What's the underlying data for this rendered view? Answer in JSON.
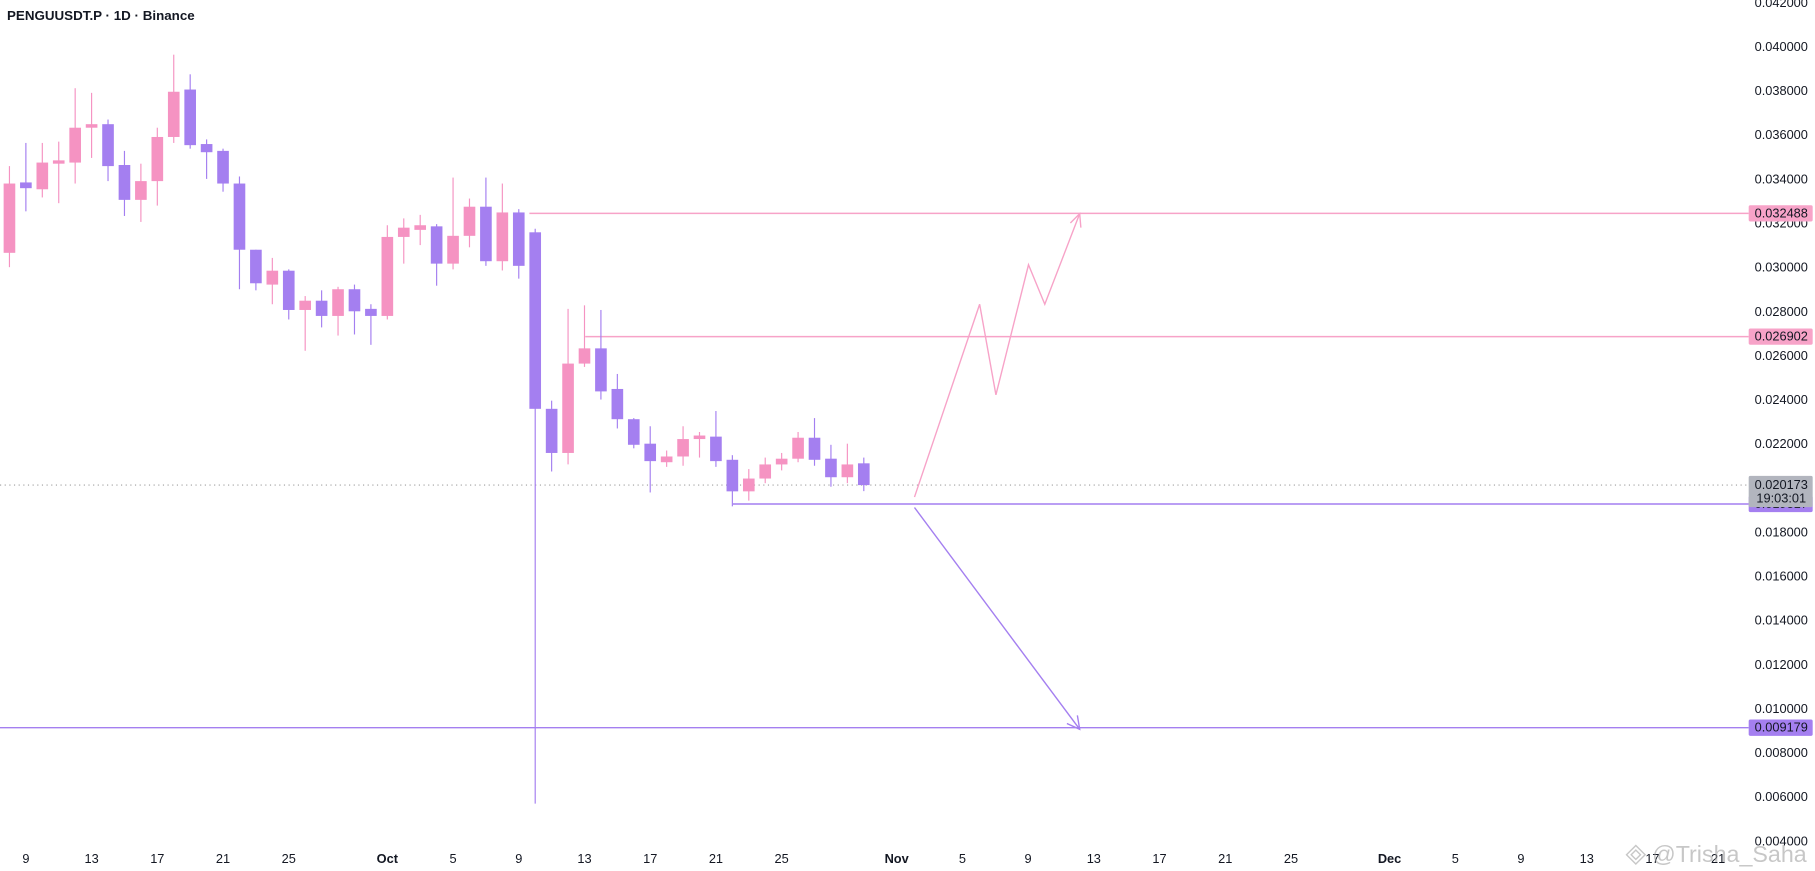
{
  "chart_data": {
    "type": "candlestick",
    "title": "PENGUUSDT.P · 1D · Binance",
    "x": [
      "09-08",
      "09-09",
      "09-10",
      "09-11",
      "09-12",
      "09-13",
      "09-14",
      "09-15",
      "09-16",
      "09-17",
      "09-18",
      "09-19",
      "09-20",
      "09-21",
      "09-22",
      "09-23",
      "09-24",
      "09-25",
      "09-26",
      "09-27",
      "09-28",
      "09-29",
      "09-30",
      "10-01",
      "10-02",
      "10-03",
      "10-04",
      "10-05",
      "10-06",
      "10-07",
      "10-08",
      "10-09",
      "10-10",
      "10-11",
      "10-12",
      "10-13",
      "10-14",
      "10-15",
      "10-16",
      "10-17",
      "10-18",
      "10-19",
      "10-20",
      "10-21",
      "10-22",
      "10-23",
      "10-24",
      "10-25",
      "10-26",
      "10-27",
      "10-28",
      "10-29",
      "10-30"
    ],
    "open": [
      0.0307,
      0.03389,
      0.03358,
      0.03474,
      0.03479,
      0.03637,
      0.03653,
      0.03468,
      0.0331,
      0.03395,
      0.03595,
      0.0381,
      0.03563,
      0.03532,
      0.03384,
      0.03084,
      0.02926,
      0.02989,
      0.02811,
      0.02853,
      0.02784,
      0.02905,
      0.02816,
      0.02784,
      0.03142,
      0.03174,
      0.0319,
      0.03021,
      0.03147,
      0.03279,
      0.03032,
      0.03253,
      0.03163,
      0.02363,
      0.02163,
      0.02568,
      0.02637,
      0.02453,
      0.02316,
      0.02205,
      0.02121,
      0.02147,
      0.02226,
      0.02237,
      0.02132,
      0.01989,
      0.02047,
      0.02111,
      0.02137,
      0.02232,
      0.02137,
      0.02053,
      0.02116
    ],
    "high": [
      0.03463,
      0.03568,
      0.03568,
      0.03574,
      0.03816,
      0.03795,
      0.03674,
      0.03532,
      0.03474,
      0.03637,
      0.03968,
      0.03879,
      0.03584,
      0.03542,
      0.03416,
      0.03084,
      0.03047,
      0.02995,
      0.02874,
      0.029,
      0.02916,
      0.02926,
      0.02837,
      0.03195,
      0.03226,
      0.03242,
      0.032,
      0.03411,
      0.03316,
      0.03411,
      0.03384,
      0.03268,
      0.03179,
      0.024,
      0.02816,
      0.02832,
      0.02811,
      0.02521,
      0.02321,
      0.02284,
      0.02174,
      0.02284,
      0.02258,
      0.02353,
      0.02153,
      0.0209,
      0.02142,
      0.02163,
      0.02258,
      0.02321,
      0.022,
      0.02205,
      0.02142
    ],
    "low": [
      0.03005,
      0.03258,
      0.03321,
      0.03295,
      0.03384,
      0.035,
      0.03395,
      0.03237,
      0.0321,
      0.03284,
      0.03568,
      0.03542,
      0.03405,
      0.03347,
      0.02905,
      0.029,
      0.02837,
      0.02768,
      0.02626,
      0.02732,
      0.02695,
      0.027,
      0.02653,
      0.02768,
      0.03021,
      0.03105,
      0.02921,
      0.02995,
      0.03095,
      0.03011,
      0.0299,
      0.02953,
      0.00574,
      0.02079,
      0.02111,
      0.02553,
      0.02405,
      0.02274,
      0.02184,
      0.01984,
      0.021,
      0.02105,
      0.02142,
      0.021,
      0.01921,
      0.01947,
      0.02026,
      0.02084,
      0.02121,
      0.02105,
      0.0201,
      0.02026,
      0.0199
    ],
    "close": [
      0.03384,
      0.03363,
      0.03479,
      0.03489,
      0.03637,
      0.03653,
      0.03463,
      0.0331,
      0.03395,
      0.03595,
      0.038,
      0.03558,
      0.03526,
      0.03384,
      0.03084,
      0.02932,
      0.02989,
      0.02811,
      0.02853,
      0.02784,
      0.02905,
      0.02805,
      0.02784,
      0.03142,
      0.03184,
      0.03195,
      0.03021,
      0.03147,
      0.03279,
      0.03032,
      0.03253,
      0.03011,
      0.02363,
      0.02163,
      0.02568,
      0.02637,
      0.02442,
      0.02316,
      0.022,
      0.02126,
      0.02147,
      0.02226,
      0.02242,
      0.02126,
      0.01989,
      0.02047,
      0.02111,
      0.02137,
      0.02232,
      0.02132,
      0.02053,
      0.02111,
      0.020173
    ],
    "up_color": "#f593c2",
    "down_color": "#a47ff0",
    "xlim": [
      "09-07",
      "12-23"
    ],
    "xticks": [
      {
        "value": "09-09",
        "label": "9"
      },
      {
        "value": "09-13",
        "label": "13"
      },
      {
        "value": "09-17",
        "label": "17"
      },
      {
        "value": "09-21",
        "label": "21"
      },
      {
        "value": "09-25",
        "label": "25"
      },
      {
        "value": "10-01",
        "label": "Oct"
      },
      {
        "value": "10-05",
        "label": "5"
      },
      {
        "value": "10-09",
        "label": "9"
      },
      {
        "value": "10-13",
        "label": "13"
      },
      {
        "value": "10-17",
        "label": "17"
      },
      {
        "value": "10-21",
        "label": "21"
      },
      {
        "value": "10-25",
        "label": "25"
      },
      {
        "value": "11-01",
        "label": "Nov"
      },
      {
        "value": "11-05",
        "label": "5"
      },
      {
        "value": "11-09",
        "label": "9"
      },
      {
        "value": "11-13",
        "label": "13"
      },
      {
        "value": "11-17",
        "label": "17"
      },
      {
        "value": "11-21",
        "label": "21"
      },
      {
        "value": "11-25",
        "label": "25"
      },
      {
        "value": "12-01",
        "label": "Dec"
      },
      {
        "value": "12-05",
        "label": "5"
      },
      {
        "value": "12-09",
        "label": "9"
      },
      {
        "value": "12-13",
        "label": "13"
      },
      {
        "value": "12-17",
        "label": "17"
      },
      {
        "value": "12-21",
        "label": "21"
      }
    ],
    "ylim": [
      0.004,
      0.042
    ],
    "yticks": [
      {
        "value": 0.042,
        "label": "0.042000"
      },
      {
        "value": 0.04,
        "label": "0.040000"
      },
      {
        "value": 0.038,
        "label": "0.038000"
      },
      {
        "value": 0.036,
        "label": "0.036000"
      },
      {
        "value": 0.034,
        "label": "0.034000"
      },
      {
        "value": 0.032,
        "label": "0.032000"
      },
      {
        "value": 0.03,
        "label": "0.030000"
      },
      {
        "value": 0.028,
        "label": "0.028000"
      },
      {
        "value": 0.026,
        "label": "0.026000"
      },
      {
        "value": 0.024,
        "label": "0.024000"
      },
      {
        "value": 0.022,
        "label": "0.022000"
      },
      {
        "value": 0.018,
        "label": "0.018000"
      },
      {
        "value": 0.016,
        "label": "0.016000"
      },
      {
        "value": 0.014,
        "label": "0.014000"
      },
      {
        "value": 0.012,
        "label": "0.012000"
      },
      {
        "value": 0.01,
        "label": "0.010000"
      },
      {
        "value": 0.008,
        "label": "0.008000"
      },
      {
        "value": 0.006,
        "label": "0.006000"
      },
      {
        "value": 0.004,
        "label": "0.004000"
      }
    ],
    "grid": false,
    "levels": [
      {
        "value": 0.032488,
        "color": "#f7a3c8"
      },
      {
        "value": 0.026902,
        "color": "#f7a3c8"
      },
      {
        "value": 0.019317,
        "color": "#a47ff0"
      },
      {
        "value": 0.009179,
        "color": "#a47ff0"
      }
    ],
    "last_price": 0.020173,
    "countdown": "19:03:01",
    "watermark": "@Trisha_Saha"
  }
}
